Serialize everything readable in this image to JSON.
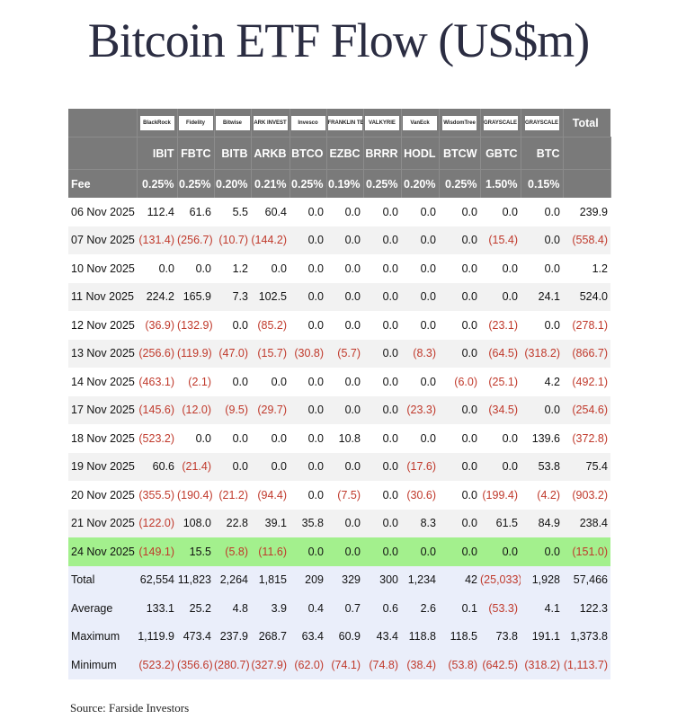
{
  "title": "Bitcoin ETF Flow (US$m)",
  "source": "Source: Farside Investors",
  "issuers": [
    "BlackRock",
    "Fidelity",
    "Bitwise",
    "ARK INVEST",
    "Invesco",
    "FRANKLIN TEMPLETON",
    "VALKYRIE",
    "VanEck",
    "WisdomTree",
    "GRAYSCALE",
    "GRAYSCALE"
  ],
  "chart_data": {
    "type": "table",
    "title": "Bitcoin ETF Flow (US$m)",
    "columns": [
      "IBIT",
      "FBTC",
      "BITB",
      "ARKB",
      "BTCO",
      "EZBC",
      "BRRR",
      "HODL",
      "BTCW",
      "GBTC",
      "BTC",
      "Total"
    ],
    "fee_label": "Fee",
    "fees": [
      "0.25%",
      "0.25%",
      "0.20%",
      "0.21%",
      "0.25%",
      "0.19%",
      "0.25%",
      "0.20%",
      "0.25%",
      "1.50%",
      "0.15%",
      ""
    ],
    "rows": [
      {
        "date": "06 Nov 2025",
        "values": [
          "112.4",
          "61.6",
          "5.5",
          "60.4",
          "0.0",
          "0.0",
          "0.0",
          "0.0",
          "0.0",
          "0.0",
          "0.0",
          "239.9"
        ]
      },
      {
        "date": "07 Nov 2025",
        "values": [
          "(131.4)",
          "(256.7)",
          "(10.7)",
          "(144.2)",
          "0.0",
          "0.0",
          "0.0",
          "0.0",
          "0.0",
          "(15.4)",
          "0.0",
          "(558.4)"
        ]
      },
      {
        "date": "10 Nov 2025",
        "values": [
          "0.0",
          "0.0",
          "1.2",
          "0.0",
          "0.0",
          "0.0",
          "0.0",
          "0.0",
          "0.0",
          "0.0",
          "0.0",
          "1.2"
        ]
      },
      {
        "date": "11 Nov 2025",
        "values": [
          "224.2",
          "165.9",
          "7.3",
          "102.5",
          "0.0",
          "0.0",
          "0.0",
          "0.0",
          "0.0",
          "0.0",
          "24.1",
          "524.0"
        ]
      },
      {
        "date": "12 Nov 2025",
        "values": [
          "(36.9)",
          "(132.9)",
          "0.0",
          "(85.2)",
          "0.0",
          "0.0",
          "0.0",
          "0.0",
          "0.0",
          "(23.1)",
          "0.0",
          "(278.1)"
        ]
      },
      {
        "date": "13 Nov 2025",
        "values": [
          "(256.6)",
          "(119.9)",
          "(47.0)",
          "(15.7)",
          "(30.8)",
          "(5.7)",
          "0.0",
          "(8.3)",
          "0.0",
          "(64.5)",
          "(318.2)",
          "(866.7)"
        ]
      },
      {
        "date": "14 Nov 2025",
        "values": [
          "(463.1)",
          "(2.1)",
          "0.0",
          "0.0",
          "0.0",
          "0.0",
          "0.0",
          "0.0",
          "(6.0)",
          "(25.1)",
          "4.2",
          "(492.1)"
        ]
      },
      {
        "date": "17 Nov 2025",
        "values": [
          "(145.6)",
          "(12.0)",
          "(9.5)",
          "(29.7)",
          "0.0",
          "0.0",
          "0.0",
          "(23.3)",
          "0.0",
          "(34.5)",
          "0.0",
          "(254.6)"
        ]
      },
      {
        "date": "18 Nov 2025",
        "values": [
          "(523.2)",
          "0.0",
          "0.0",
          "0.0",
          "0.0",
          "10.8",
          "0.0",
          "0.0",
          "0.0",
          "0.0",
          "139.6",
          "(372.8)"
        ]
      },
      {
        "date": "19 Nov 2025",
        "values": [
          "60.6",
          "(21.4)",
          "0.0",
          "0.0",
          "0.0",
          "0.0",
          "0.0",
          "(17.6)",
          "0.0",
          "0.0",
          "53.8",
          "75.4"
        ]
      },
      {
        "date": "20 Nov 2025",
        "values": [
          "(355.5)",
          "(190.4)",
          "(21.2)",
          "(94.4)",
          "0.0",
          "(7.5)",
          "0.0",
          "(30.6)",
          "0.0",
          "(199.4)",
          "(4.2)",
          "(903.2)"
        ]
      },
      {
        "date": "21 Nov 2025",
        "values": [
          "(122.0)",
          "108.0",
          "22.8",
          "39.1",
          "35.8",
          "0.0",
          "0.0",
          "8.3",
          "0.0",
          "61.5",
          "84.9",
          "238.4"
        ]
      },
      {
        "date": "24 Nov 2025",
        "values": [
          "(149.1)",
          "15.5",
          "(5.8)",
          "(11.6)",
          "0.0",
          "0.0",
          "0.0",
          "0.0",
          "0.0",
          "0.0",
          "0.0",
          "(151.0)"
        ],
        "highlight": true
      }
    ],
    "summary": [
      {
        "label": "Total",
        "values": [
          "62,554",
          "11,823",
          "2,264",
          "1,815",
          "209",
          "329",
          "300",
          "1,234",
          "42",
          "(25,033)",
          "1,928",
          "57,466"
        ]
      },
      {
        "label": "Average",
        "values": [
          "133.1",
          "25.2",
          "4.8",
          "3.9",
          "0.4",
          "0.7",
          "0.6",
          "2.6",
          "0.1",
          "(53.3)",
          "4.1",
          "122.3"
        ]
      },
      {
        "label": "Maximum",
        "values": [
          "1,119.9",
          "473.4",
          "237.9",
          "268.7",
          "63.4",
          "60.9",
          "43.4",
          "118.8",
          "118.5",
          "73.8",
          "191.1",
          "1,373.8"
        ]
      },
      {
        "label": "Minimum",
        "values": [
          "(523.2)",
          "(356.6)",
          "(280.7)",
          "(327.9)",
          "(62.0)",
          "(74.1)",
          "(74.8)",
          "(38.4)",
          "(53.8)",
          "(642.5)",
          "(318.2)",
          "(1,113.7)"
        ]
      }
    ],
    "colors": {
      "header": "#7a7a7a",
      "negative": "#c0392b",
      "highlight": "#a3f08d",
      "summary": "#eaeefa"
    }
  }
}
